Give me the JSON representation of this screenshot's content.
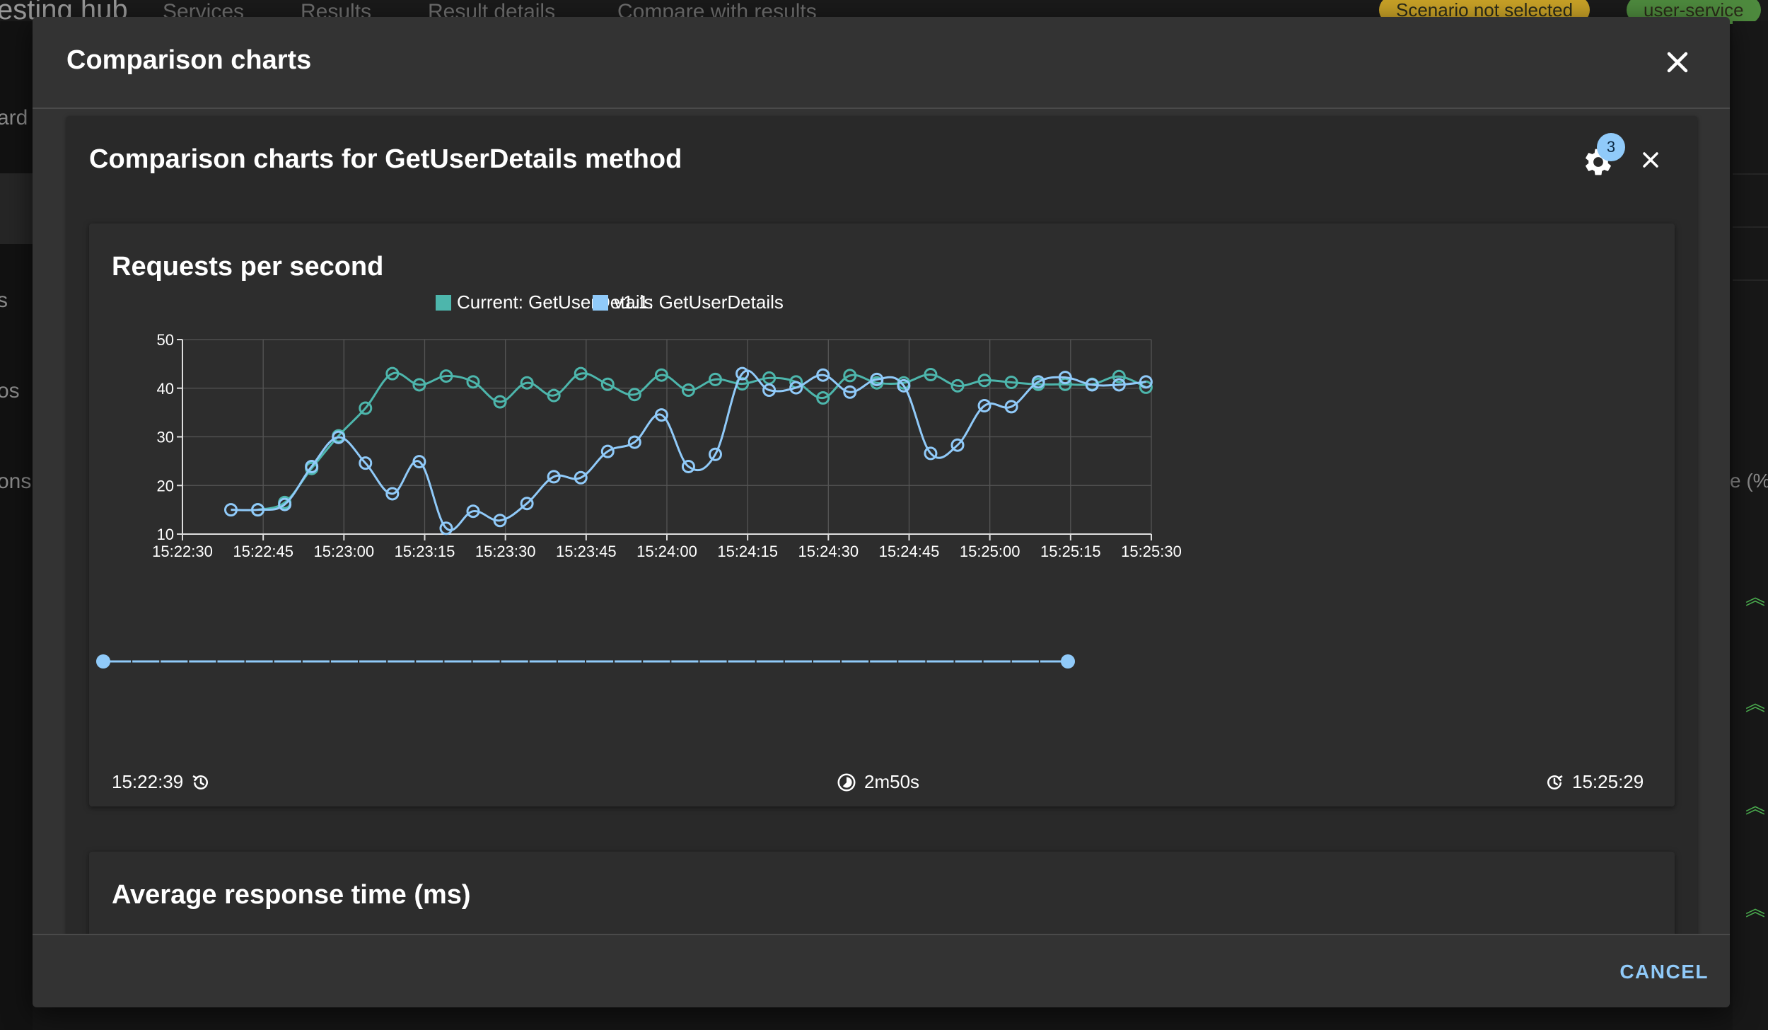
{
  "background": {
    "brand": "esting hub",
    "breadcrumbs": [
      "Services",
      "Results",
      "Result details",
      "Compare with results"
    ],
    "scenario_chip": "Scenario not selected",
    "service_chip": "user-service",
    "sidebar_texts": [
      "ard",
      "s",
      "os",
      "ons"
    ],
    "right_text": "e (%"
  },
  "dialog": {
    "title": "Comparison charts",
    "cancel_label": "CANCEL"
  },
  "method_card": {
    "title": "Comparison charts for GetUserDetails method",
    "settings_badge": "3"
  },
  "rps_chart": {
    "range_start": "15:22:39",
    "range_duration": "2m50s",
    "range_end": "15:25:29"
  },
  "chart_data": {
    "type": "line",
    "title": "Requests per second",
    "xlabel": "",
    "ylabel": "",
    "ylim": [
      10,
      50
    ],
    "yticks": [
      10,
      20,
      30,
      40,
      50
    ],
    "xlim": [
      "15:22:30",
      "15:25:30"
    ],
    "xticks": [
      "15:22:30",
      "15:22:45",
      "15:23:00",
      "15:23:15",
      "15:23:30",
      "15:23:45",
      "15:24:00",
      "15:24:15",
      "15:24:30",
      "15:24:45",
      "15:25:00",
      "15:25:15",
      "15:25:30"
    ],
    "grid": true,
    "legend": "top-center",
    "series": [
      {
        "name": "Current: GetUserDetails",
        "color": "#4db6ac",
        "x": [
          "15:22:44",
          "15:22:49",
          "15:22:54",
          "15:22:59",
          "15:23:04",
          "15:23:09",
          "15:23:14",
          "15:23:19",
          "15:23:24",
          "15:23:29",
          "15:23:34",
          "15:23:39",
          "15:23:44",
          "15:23:49",
          "15:23:54",
          "15:23:59",
          "15:24:04",
          "15:24:09",
          "15:24:14",
          "15:24:19",
          "15:24:24",
          "15:24:29",
          "15:24:34",
          "15:24:39",
          "15:24:44",
          "15:24:49",
          "15:24:54",
          "15:24:59",
          "15:25:04",
          "15:25:09",
          "15:25:14",
          "15:25:19",
          "15:25:24",
          "15:25:29"
        ],
        "values": [
          15.0,
          16.5,
          23.5,
          30.2,
          35.9,
          43.0,
          40.7,
          42.5,
          41.3,
          37.2,
          41.1,
          38.5,
          43.0,
          40.8,
          38.7,
          42.7,
          39.6,
          41.8,
          40.9,
          42.1,
          41.3,
          38.0,
          42.6,
          41.1,
          41.1,
          42.8,
          40.5,
          41.6,
          41.2,
          40.8,
          40.8,
          40.8,
          42.4,
          40.2
        ]
      },
      {
        "name": "v1.1: GetUserDetails",
        "color": "#90caf9",
        "x": [
          "15:22:39",
          "15:22:44",
          "15:22:49",
          "15:22:54",
          "15:22:59",
          "15:23:04",
          "15:23:09",
          "15:23:14",
          "15:23:19",
          "15:23:24",
          "15:23:29",
          "15:23:34",
          "15:23:39",
          "15:23:44",
          "15:23:49",
          "15:23:54",
          "15:23:59",
          "15:24:04",
          "15:24:09",
          "15:24:14",
          "15:24:19",
          "15:24:24",
          "15:24:29",
          "15:24:34",
          "15:24:39",
          "15:24:44",
          "15:24:49",
          "15:24:54",
          "15:24:59",
          "15:25:04",
          "15:25:09",
          "15:25:14",
          "15:25:19",
          "15:25:24",
          "15:25:29"
        ],
        "values": [
          15.0,
          15.0,
          16.1,
          23.9,
          29.9,
          24.6,
          18.3,
          24.9,
          11.2,
          14.7,
          12.8,
          16.3,
          21.8,
          21.6,
          27.0,
          28.9,
          34.5,
          23.9,
          26.4,
          43.0,
          39.6,
          40.1,
          42.7,
          39.2,
          41.8,
          40.5,
          26.6,
          28.3,
          36.4,
          36.2,
          41.3,
          42.2,
          40.7,
          40.7,
          41.3
        ]
      }
    ]
  },
  "next_chart": {
    "title": "Average response time (ms)"
  }
}
